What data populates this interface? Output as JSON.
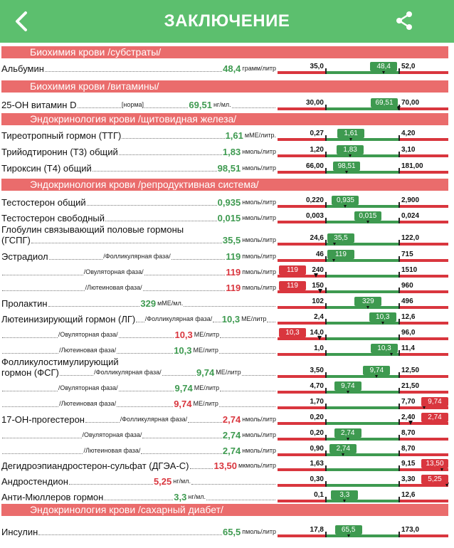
{
  "header": {
    "title": "ЗАКЛЮЧЕНИЕ",
    "back_icon": "chevron-left-icon",
    "share_icon": "share-icon"
  },
  "colors": {
    "ok": "#3e9a50",
    "bad": "#d9363e",
    "header": "#5cbf6e",
    "section": "#ea6c6c"
  },
  "sections": [
    {
      "title": "Биохимия крови /субстраты/",
      "rows": [
        {
          "name": "Альбумин",
          "value": "48,4",
          "unit": "грамм/литр",
          "low": "35,0",
          "high": "52,0",
          "status": "ok"
        }
      ]
    },
    {
      "title": "Биохимия крови /витамины/",
      "rows": [
        {
          "name": "25-ОН витамин D",
          "note": "[норма]",
          "value": "69,51",
          "unit": "нг/мл.",
          "low": "30,00",
          "high": "70,00",
          "status": "ok"
        }
      ]
    },
    {
      "title": "Эндокринология крови /щитовидная железа/",
      "rows": [
        {
          "name": "Тиреотропный гормон (ТТГ)",
          "value": "1,61",
          "unit": "мМЕ/литр.",
          "low": "0,27",
          "high": "4,20",
          "status": "ok"
        },
        {
          "name": "Трийодтиронин (Т3) общий",
          "value": "1,83",
          "unit": "нмоль/литр",
          "low": "1,20",
          "high": "3,10",
          "status": "ok"
        },
        {
          "name": "Тироксин (Т4) общий",
          "value": "98,51",
          "unit": "нмоль/литр",
          "low": "66,00",
          "high": "181,00",
          "status": "ok"
        }
      ]
    },
    {
      "title": "Эндокринология крови /репродуктивная система/",
      "rows": [
        {
          "name": "Тестостерон общий",
          "value": "0,935",
          "unit": "нмоль/литр",
          "low": "0,220",
          "high": "2,900",
          "status": "ok"
        },
        {
          "name": "Тестостерон свободный",
          "value": "0,015",
          "unit": "нмоль/литр",
          "low": "0,003",
          "high": "0,024",
          "status": "ok"
        },
        {
          "name_line1": "Глобулин связывающий половые гормоны",
          "name": "(ГСПГ)",
          "value": "35,5",
          "unit": "нмоль/литр",
          "low": "24,6",
          "high": "122,0",
          "status": "ok"
        },
        {
          "name": "Эстрадиол",
          "phase": "/Фолликулярная фаза/",
          "value": "119",
          "unit": "пмоль/литр",
          "low": "46",
          "high": "715",
          "status": "ok"
        },
        {
          "name": "",
          "phase": "/Овуляторная фаза/",
          "value": "119",
          "unit": "пмоль/литр",
          "low": "240",
          "high": "1510",
          "status": "low"
        },
        {
          "name": "",
          "phase": "/Лютеиновая фаза/",
          "value": "119",
          "unit": "пмоль/литр",
          "low": "150",
          "high": "960",
          "status": "low"
        },
        {
          "name": "Пролактин",
          "value": "329",
          "unit": "мМЕ/мл.",
          "low": "102",
          "high": "496",
          "status": "ok"
        },
        {
          "name": "Лютеинизирующий гормон (ЛГ)",
          "phase": "/Фолликулярная фаза/",
          "value": "10,3",
          "unit": "МЕ/литр",
          "low": "2,4",
          "high": "12,6",
          "status": "ok"
        },
        {
          "name": "",
          "phase": "/Овуляторная фаза/",
          "value": "10,3",
          "unit": "МЕ/литр",
          "low": "14,0",
          "high": "96,0",
          "status": "low"
        },
        {
          "name": "",
          "phase": "/Лютеиновая фаза/",
          "value": "10,3",
          "unit": "МЕ/литр",
          "low": "1,0",
          "high": "11,4",
          "status": "ok"
        },
        {
          "name_line1": "Фолликулостимулирующий",
          "name": "гормон (ФСГ)",
          "phase": "/Фолликулярная фаза/",
          "value": "9,74",
          "unit": "МЕ/литр",
          "low": "3,50",
          "high": "12,50",
          "status": "ok"
        },
        {
          "name": "",
          "phase": "/Овуляторная фаза/",
          "value": "9,74",
          "unit": "МЕ/литр",
          "low": "4,70",
          "high": "21,50",
          "status": "ok"
        },
        {
          "name": "",
          "phase": "/Лютеиновая фаза/",
          "value": "9,74",
          "unit": "МЕ/литр",
          "low": "1,70",
          "high": "7,70",
          "status": "high"
        },
        {
          "name": "17-ОН-прогестерон",
          "phase": "/Фолликулярная фаза/",
          "value": "2,74",
          "unit": "нмоль/литр",
          "low": "0,20",
          "high": "2,40",
          "status": "high"
        },
        {
          "name": "",
          "phase": "/Овуляторная фаза/",
          "value": "2,74",
          "unit": "нмоль/литр",
          "low": "0,20",
          "high": "8,70",
          "status": "ok"
        },
        {
          "name": "",
          "phase": "/Лютеиновая фаза/",
          "value": "2,74",
          "unit": "нмоль/литр",
          "low": "0,90",
          "high": "8,70",
          "status": "ok"
        },
        {
          "name": "Дегидроэпиандростерон-сульфат (ДГЭА-С)",
          "value": "13,50",
          "unit": "мкмоль/литр",
          "low": "1,63",
          "high": "9,15",
          "status": "high"
        },
        {
          "name": "Андростендион",
          "value": "5,25",
          "unit": "нг/мл.",
          "low": "0,30",
          "high": "3,30",
          "status": "high"
        },
        {
          "name": "Анти-Мюллеров гормон",
          "value": "3,3",
          "unit": "нг/мл.",
          "low": "0,1",
          "high": "12,6",
          "status": "ok"
        }
      ]
    },
    {
      "title": "Эндокринология крови /сахарный диабет/",
      "rows": [
        {
          "name": "Инсулин",
          "value": "65,5",
          "unit": "пмоль/литр",
          "low": "17,8",
          "high": "173,0",
          "status": "ok"
        }
      ]
    }
  ]
}
